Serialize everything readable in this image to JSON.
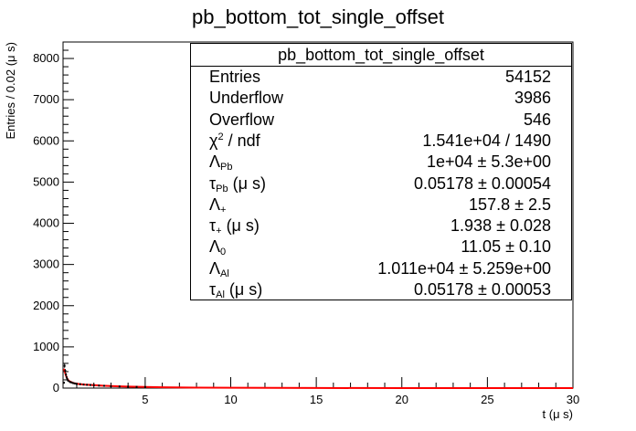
{
  "chart_data": {
    "type": "scatter",
    "title": "pb_bottom_tot_single_offset",
    "xlabel": "t (μ s)",
    "ylabel": "Entries / 0.02 (μ s)",
    "xlim": [
      0.2,
      30
    ],
    "ylim": [
      0,
      8400
    ],
    "x_ticks": [
      "5",
      "10",
      "15",
      "20",
      "25",
      "30"
    ],
    "y_ticks": [
      "0",
      "1000",
      "2000",
      "3000",
      "4000",
      "5000",
      "6000",
      "7000",
      "8000"
    ],
    "data_color": "#000000",
    "fit_color": "#ff0000",
    "series": [
      {
        "kind": "data",
        "x": [
          0.25,
          0.29,
          0.33,
          0.37,
          0.41,
          0.45,
          0.5,
          0.6,
          0.7,
          0.8,
          0.9,
          1.0,
          1.2,
          1.4,
          1.6,
          1.8,
          2.0,
          2.3,
          2.6,
          3.0,
          3.5,
          4.0,
          4.5,
          5.0
        ],
        "y": [
          130,
          540,
          420,
          330,
          260,
          210,
          180,
          150,
          135,
          120,
          110,
          100,
          95,
          85,
          80,
          75,
          70,
          60,
          55,
          45,
          40,
          35,
          30,
          25
        ]
      },
      {
        "kind": "fit",
        "x": [
          0.25,
          0.3,
          0.35,
          0.4,
          0.45,
          0.5,
          0.6,
          0.7,
          0.8,
          1.0,
          1.2,
          1.5,
          2.0,
          2.5,
          3.0,
          4.0,
          5.0,
          6.0,
          8.0,
          10.0,
          15.0,
          20.0,
          25.0,
          30.0
        ],
        "y": [
          470,
          400,
          330,
          270,
          225,
          190,
          160,
          140,
          125,
          105,
          95,
          85,
          70,
          58,
          48,
          35,
          26,
          20,
          12,
          8,
          3,
          1,
          0,
          0
        ]
      }
    ]
  },
  "stats": {
    "title": "pb_bottom_tot_single_offset",
    "rows": [
      {
        "label": "Entries",
        "value": "54152"
      },
      {
        "label": "Underflow",
        "value": "3986"
      },
      {
        "label": "Overflow",
        "value": "546"
      },
      {
        "label_main": "χ",
        "label_sup": "2",
        "label_tail": " / ndf",
        "value": "1.541e+04 / 1490"
      },
      {
        "label_main": "Λ",
        "label_sub": "Pb",
        "value": "1e+04 ± 5.3e+00"
      },
      {
        "label_main": "τ",
        "label_sub": "Pb",
        "label_tail": " (μ s)",
        "value": "0.05178 ± 0.00054"
      },
      {
        "label_main": "Λ",
        "label_sub": "+",
        "value": "157.8 ± 2.5"
      },
      {
        "label_main": "τ",
        "label_sub": "+",
        "label_tail": " (μ s)",
        "value": "1.938 ± 0.028"
      },
      {
        "label_main": "Λ",
        "label_sub": "0",
        "value": "11.05 ± 0.10"
      },
      {
        "label_main": "Λ",
        "label_sub": "Al",
        "value": "1.011e+04 ± 5.259e+00"
      },
      {
        "label_main": "τ",
        "label_sub": "Al",
        "label_tail": " (μ s)",
        "value": "0.05178 ± 0.00053"
      }
    ]
  }
}
